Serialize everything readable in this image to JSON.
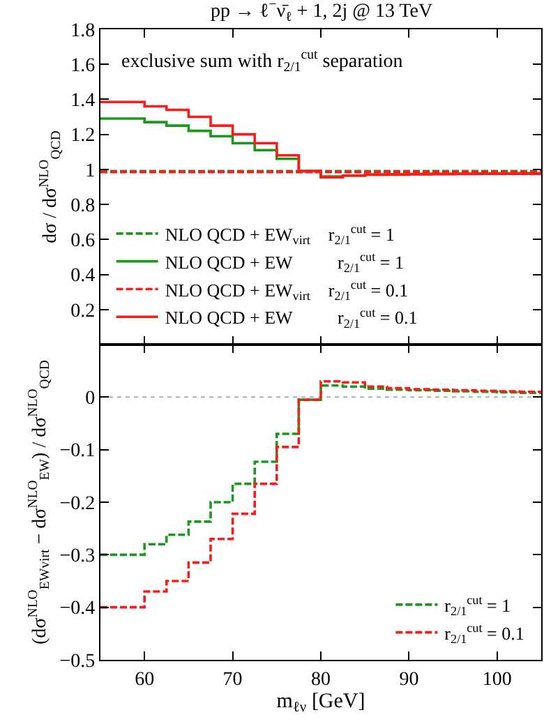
{
  "chart_data": [
    {
      "type": "step",
      "title": "pp → ℓ$^{−}$ν̄$_{ℓ}$ + 1, 2j @ 13 TeV",
      "ylabel": "dσ / dσ$^{NLO}$$_{QCD}$",
      "annotations": [
        "exclusive sum with r$_{2/1}$$^{cut}$ separation"
      ],
      "x": [
        55,
        60,
        62.5,
        65,
        67.5,
        70,
        72.5,
        75,
        77.5,
        80,
        82.5,
        85,
        87.5,
        90,
        92.5,
        95,
        97.5,
        100,
        102.5,
        105
      ],
      "series": [
        {
          "name": "NLO QCD + EW$_{virt}$    r$_{2/1}$$^{cut}$ = 1",
          "color": "#1a9a1a",
          "line_style": "dashed",
          "values": [
            0.99,
            0.99,
            0.99,
            0.99,
            0.99,
            0.99,
            0.99,
            0.99,
            0.99,
            0.99,
            0.99,
            0.99,
            0.99,
            0.99,
            0.99,
            0.99,
            0.99,
            0.99,
            0.99,
            0.99
          ]
        },
        {
          "name": "NLO QCD + EW          r$_{2/1}$$^{cut}$ = 1",
          "color": "#1a9a1a",
          "line_style": "solid",
          "values": [
            1.29,
            1.27,
            1.25,
            1.22,
            1.19,
            1.15,
            1.11,
            1.06,
            0.99,
            0.96,
            0.965,
            0.97,
            0.972,
            0.973,
            0.974,
            0.975,
            0.976,
            0.977,
            0.978,
            0.978
          ]
        },
        {
          "name": "NLO QCD + EW$_{virt}$    r$_{2/1}$$^{cut}$ = 0.1",
          "color": "#ff1a1a",
          "line_style": "dashed",
          "values": [
            0.985,
            0.985,
            0.985,
            0.985,
            0.985,
            0.985,
            0.985,
            0.985,
            0.985,
            0.985,
            0.985,
            0.985,
            0.985,
            0.985,
            0.985,
            0.985,
            0.985,
            0.985,
            0.985,
            0.985
          ]
        },
        {
          "name": "NLO QCD + EW          r$_{2/1}$$^{cut}$ = 0.1",
          "color": "#ff1a1a",
          "line_style": "solid",
          "values": [
            1.385,
            1.36,
            1.34,
            1.3,
            1.25,
            1.2,
            1.15,
            1.08,
            0.99,
            0.955,
            0.965,
            0.97,
            0.97,
            0.972,
            0.973,
            0.974,
            0.975,
            0.975,
            0.975,
            0.975
          ]
        }
      ],
      "xlim": [
        55,
        105
      ],
      "xticks": [
        {
          "value": 60,
          "label": null
        },
        {
          "value": 70,
          "label": null
        },
        {
          "value": 80,
          "label": null
        },
        {
          "value": 90,
          "label": null
        },
        {
          "value": 100,
          "label": null
        }
      ],
      "ylim": [
        0,
        1.8
      ],
      "yticks": [
        {
          "value": 0,
          "label": null
        },
        0.2,
        0.4,
        0.6,
        0.8,
        1,
        1.2,
        1.4,
        1.6,
        1.8
      ],
      "tick_labels": "y",
      "legend": "bottom",
      "grid": false,
      "marker": "none"
    },
    {
      "type": "step",
      "xlabel": "m$_{ℓν}$ [GeV]",
      "ylabel": "(dσ$^{NLO}$$_{EWvirt}$ − dσ$^{NLO}$$_{EW}$) / dσ$^{NLO}$$_{QCD}$",
      "x": [
        55,
        60,
        62.5,
        65,
        67.5,
        70,
        72.5,
        75,
        77.5,
        80,
        82.5,
        85,
        87.5,
        90,
        92.5,
        95,
        97.5,
        100,
        102.5,
        105
      ],
      "series": [
        {
          "name": "r$_{2/1}$$^{cut}$ = 1",
          "color": "#1a9a1a",
          "line_style": "dashed",
          "values": [
            -0.3,
            -0.28,
            -0.262,
            -0.237,
            -0.2,
            -0.165,
            -0.123,
            -0.07,
            -0.005,
            0.022,
            0.02,
            0.016,
            0.014,
            0.013,
            0.012,
            0.011,
            0.01,
            0.009,
            0.008,
            0.008
          ]
        },
        {
          "name": "r$_{2/1}$$^{cut}$ = 0.1",
          "color": "#ff1a1a",
          "line_style": "dashed",
          "values": [
            -0.4,
            -0.37,
            -0.35,
            -0.315,
            -0.27,
            -0.222,
            -0.165,
            -0.095,
            -0.005,
            0.03,
            0.028,
            0.02,
            0.017,
            0.015,
            0.014,
            0.013,
            0.012,
            0.011,
            0.01,
            0.01
          ]
        }
      ],
      "ref_lines": [
        {
          "axis": "y",
          "value": 0,
          "color": "#b0b0b0",
          "line_style": "dotted"
        }
      ],
      "xlim": [
        55,
        105
      ],
      "xticks": [
        60,
        70,
        80,
        90,
        100
      ],
      "ylim": [
        -0.5,
        0.1
      ],
      "yticks": [
        -0.5,
        -0.4,
        -0.3,
        -0.2,
        -0.1,
        0,
        {
          "value": 0.1,
          "label": null
        }
      ],
      "legend": "bottom right",
      "grid": false,
      "marker": "none"
    }
  ]
}
